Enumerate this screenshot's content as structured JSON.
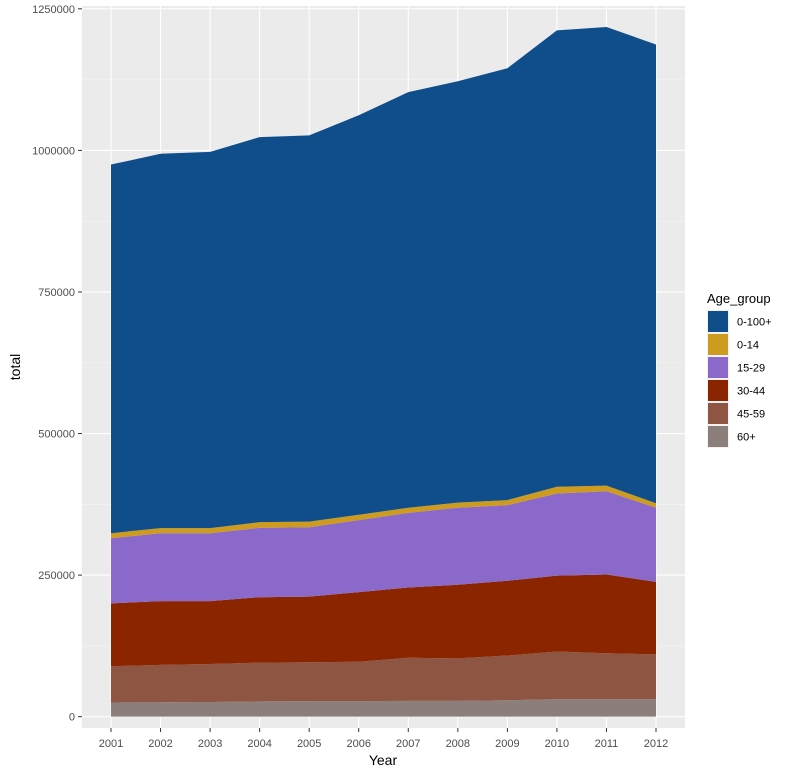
{
  "chart_data": {
    "type": "area",
    "stacked": true,
    "xlabel": "Year",
    "ylabel": "total",
    "ylim": [
      -20000,
      1255000
    ],
    "y_ticks": [
      0,
      250000,
      500000,
      750000,
      1000000,
      1250000
    ],
    "y_tick_labels": [
      "0",
      "250000",
      "500000",
      "750000",
      "1000000",
      "1250000"
    ],
    "x": [
      "2001",
      "2002",
      "2003",
      "2004",
      "2005",
      "2006",
      "2007",
      "2008",
      "2009",
      "2010",
      "2011",
      "2012"
    ],
    "grid": true,
    "legend": {
      "title": "Age_group",
      "position": "right"
    },
    "series": [
      {
        "name": "60+",
        "color": "#8c7e7b",
        "values": [
          25000,
          25500,
          26000,
          27000,
          27500,
          27500,
          28000,
          28000,
          29000,
          31000,
          31000,
          31000
        ]
      },
      {
        "name": "45-59",
        "color": "#8e5542",
        "values": [
          64000,
          66000,
          67000,
          68500,
          68500,
          69500,
          76000,
          75000,
          79000,
          84000,
          81000,
          79000
        ]
      },
      {
        "name": "30-44",
        "color": "#8b2500",
        "values": [
          111000,
          112500,
          111000,
          115500,
          116000,
          123000,
          124000,
          130000,
          132000,
          134000,
          139000,
          128000
        ]
      },
      {
        "name": "15-29",
        "color": "#8a69cb",
        "values": [
          115000,
          120000,
          120000,
          122500,
          122500,
          127000,
          132000,
          136000,
          133500,
          145000,
          147000,
          131000
        ]
      },
      {
        "name": "0-14",
        "color": "#cd9b1d",
        "values": [
          9000,
          9000,
          9000,
          10000,
          10000,
          9500,
          9000,
          9000,
          9000,
          12000,
          10000,
          8000
        ]
      },
      {
        "name": "0-100+",
        "color": "#104e8b",
        "values": [
          651000,
          661000,
          664500,
          680000,
          682000,
          705500,
          734000,
          744000,
          762500,
          806000,
          810000,
          810000
        ]
      }
    ],
    "legend_order": [
      "0-100+",
      "0-14",
      "15-29",
      "30-44",
      "45-59",
      "60+"
    ]
  }
}
